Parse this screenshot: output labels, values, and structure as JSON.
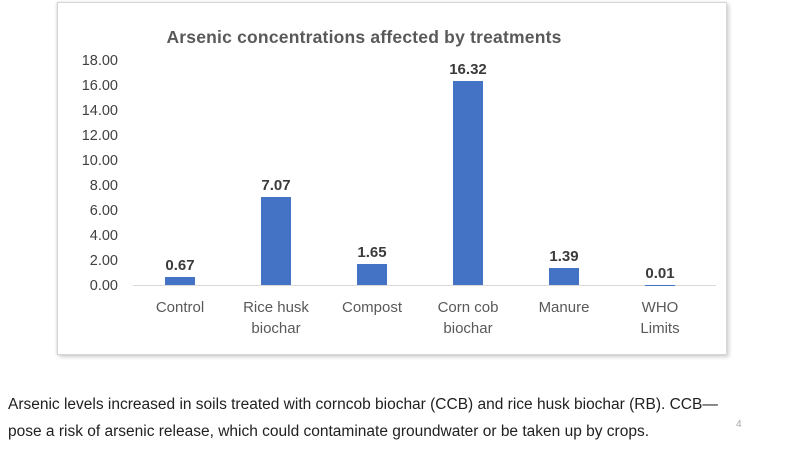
{
  "chart_data": {
    "type": "bar",
    "title": "Arsenic concentrations affected by treatments",
    "categories": [
      "Control",
      "Rice husk\nbiochar",
      "Compost",
      "Corn cob\nbiochar",
      "Manure",
      "WHO\nLimits"
    ],
    "values": [
      0.67,
      7.07,
      1.65,
      16.32,
      1.39,
      0.01
    ],
    "value_labels": [
      "0.67",
      "7.07",
      "1.65",
      "16.32",
      "1.39",
      "0.01"
    ],
    "xlabel": "",
    "ylabel": "",
    "ylim": [
      0,
      18
    ],
    "ytick_step": 2,
    "ytick_labels": [
      "18.00",
      "16.00",
      "14.00",
      "12.00",
      "10.00",
      "8.00",
      "6.00",
      "4.00",
      "2.00",
      "0.00"
    ],
    "grid": false,
    "legend": "none",
    "bar_color": "#4472C4",
    "axis_line_color": "#D9D9D9",
    "title_color": "#595959"
  },
  "caption": {
    "line1": "Arsenic levels increased in soils treated with corncob biochar (CCB) and rice husk biochar (RB). CCB—",
    "line2": "pose a risk of arsenic release, which could contaminate groundwater or be taken up by crops."
  },
  "page_number": "4"
}
